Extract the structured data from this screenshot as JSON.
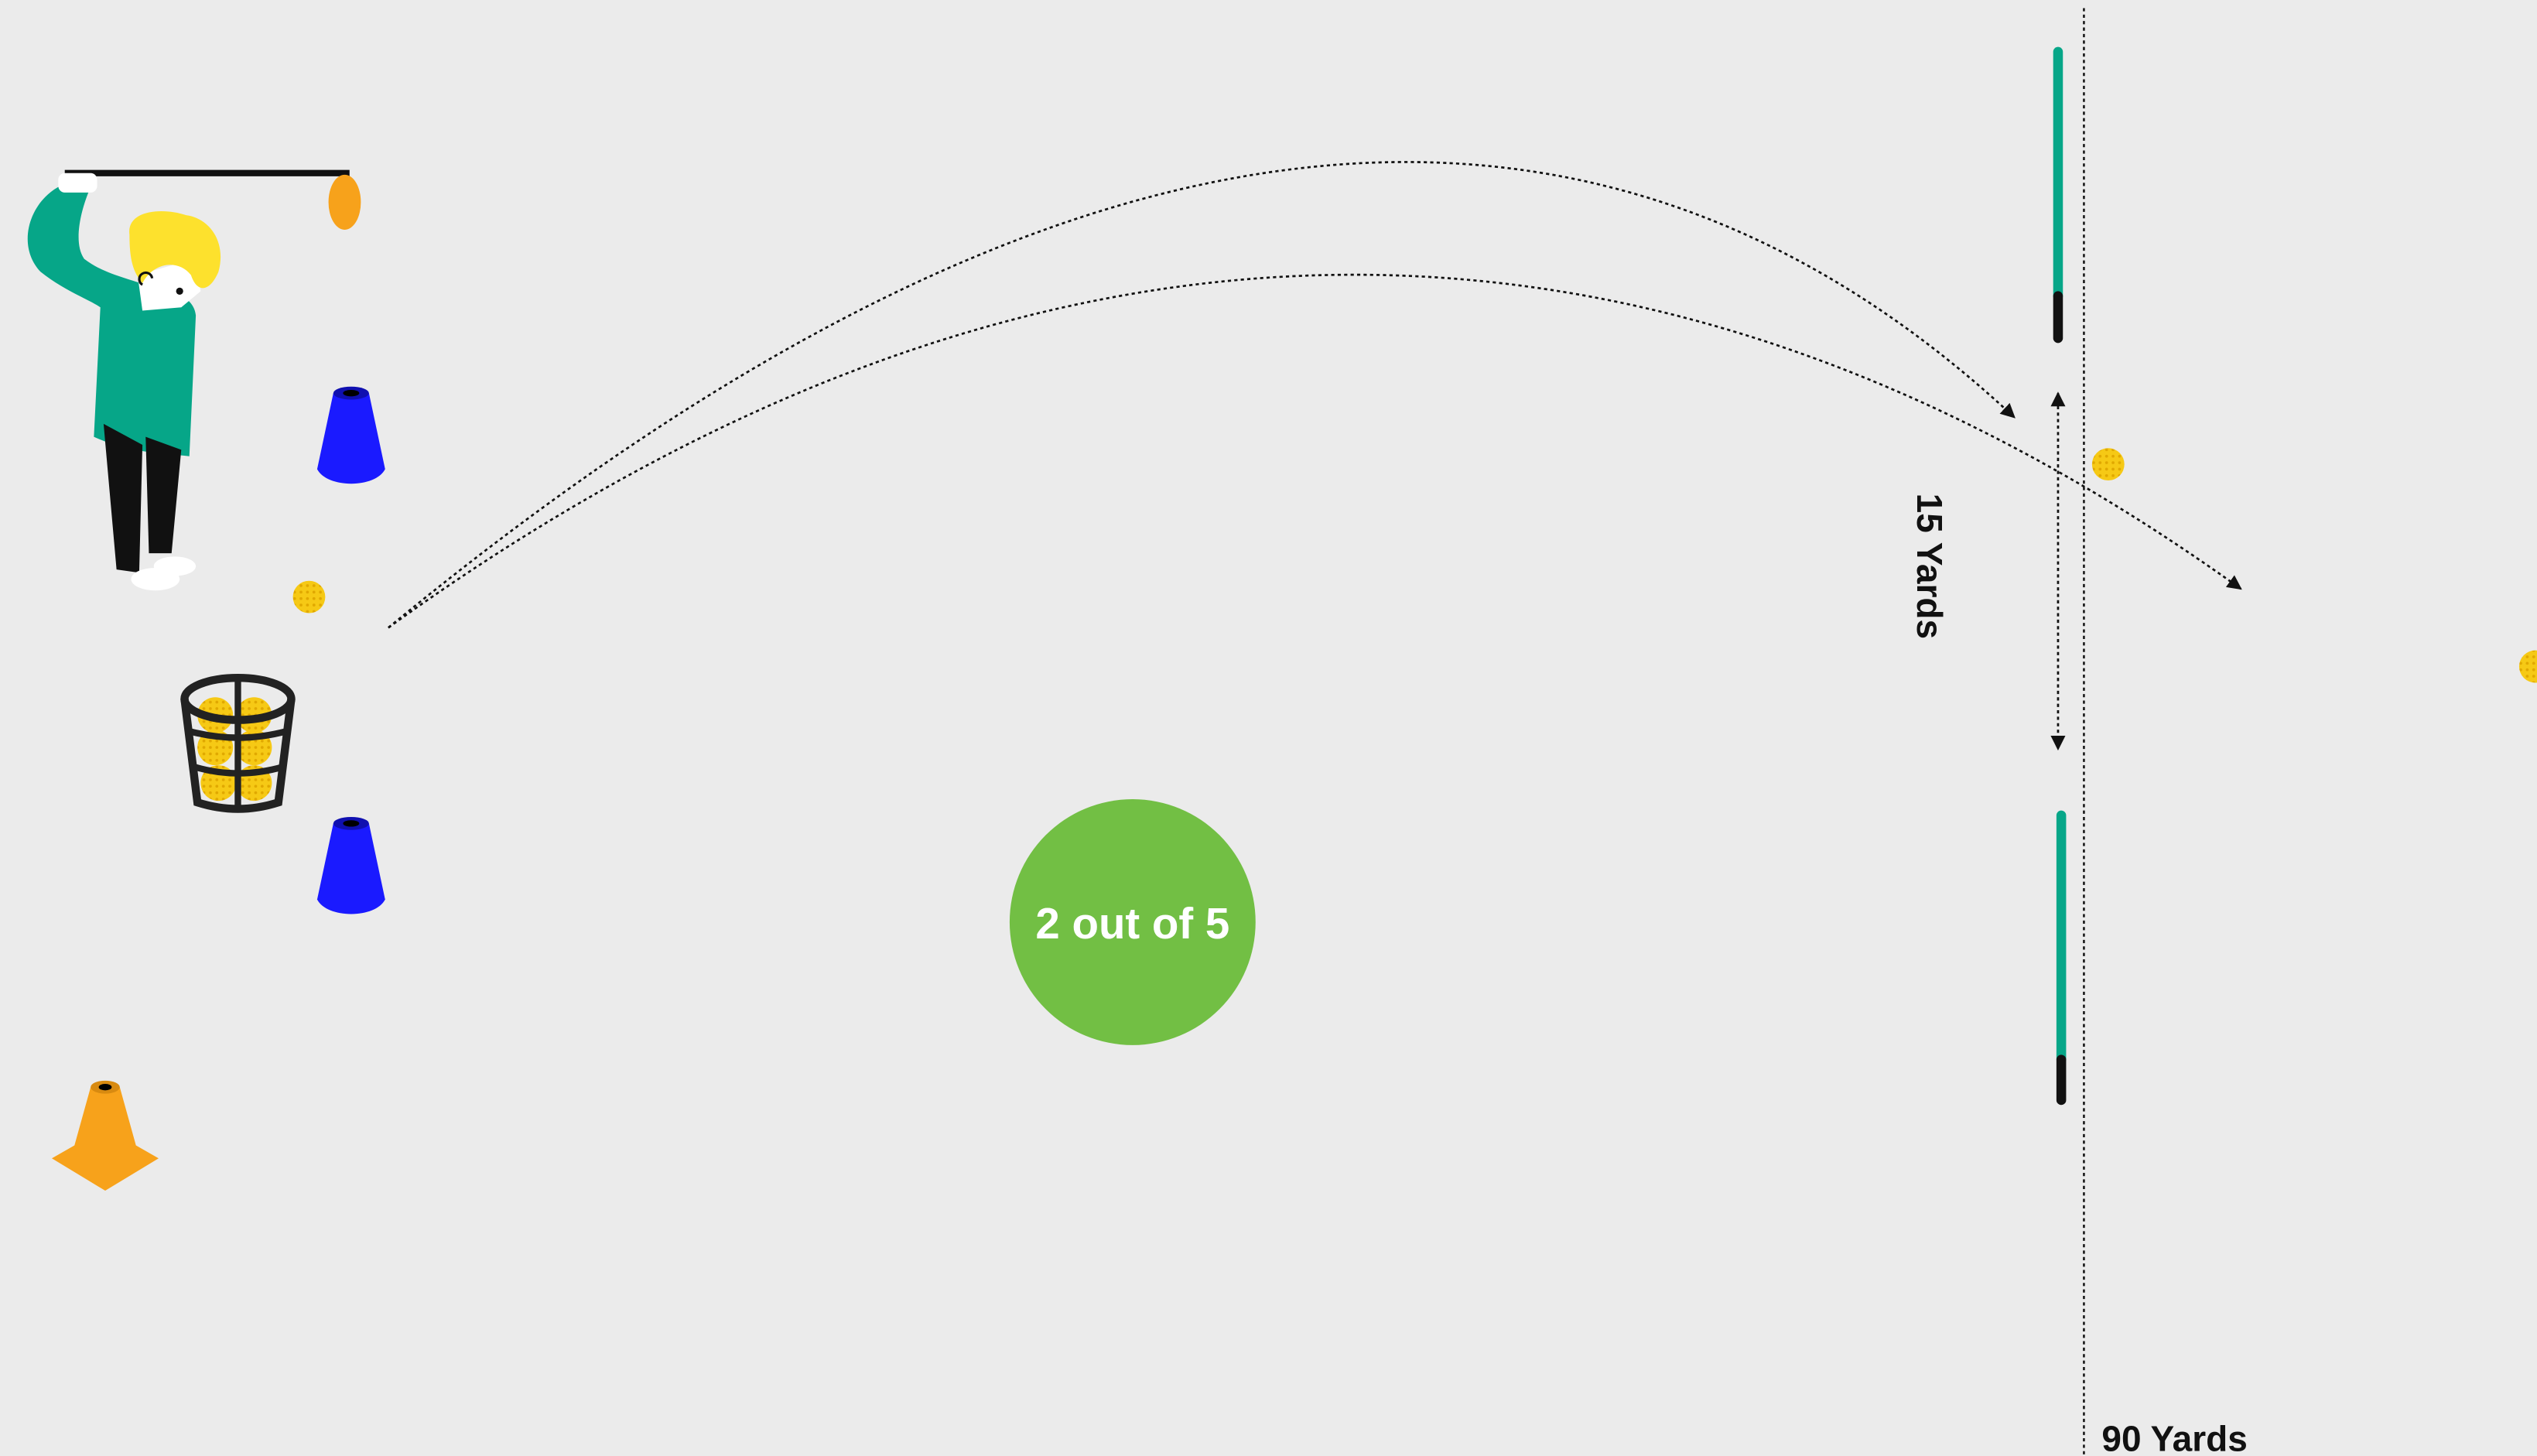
{
  "score": "2 out of 5",
  "gap_label": "15 Yards",
  "distance_label": "90 Yards"
}
